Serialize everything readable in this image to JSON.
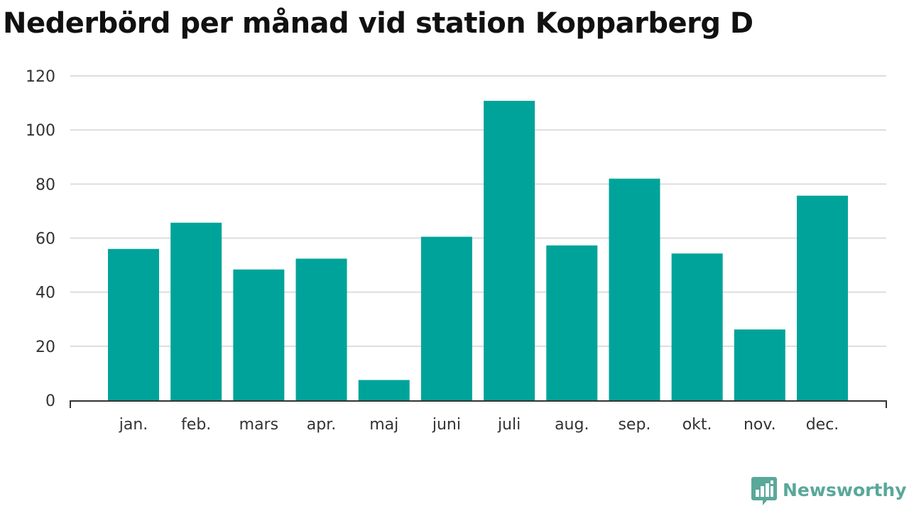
{
  "chart_data": {
    "type": "bar",
    "title": "Nederbörd per månad vid station Kopparberg D",
    "categories": [
      "jan.",
      "feb.",
      "mars",
      "apr.",
      "maj",
      "juni",
      "juli",
      "aug.",
      "sep.",
      "okt.",
      "nov.",
      "dec."
    ],
    "values": [
      56,
      65.7,
      48.4,
      52.4,
      7.5,
      60.5,
      110.8,
      57.3,
      82,
      54.3,
      26.2,
      75.7
    ],
    "yticks": [
      0,
      20,
      40,
      60,
      80,
      100,
      120
    ],
    "ylim": [
      0,
      120
    ],
    "grid": true,
    "bar_color": "#00a39a",
    "grid_color": "#dddddd"
  },
  "brand": {
    "name": "Newsworthy",
    "color": "#5aa89a",
    "icon": "newsworthy-logo-icon"
  }
}
